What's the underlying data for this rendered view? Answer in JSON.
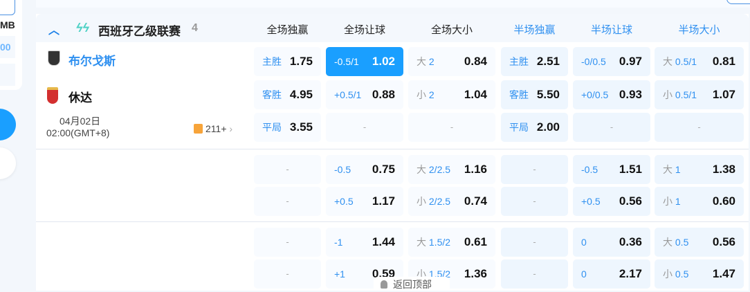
{
  "sidebar": {
    "currency_fragment": "MB",
    "value_fragment": "00"
  },
  "league": {
    "name": "西班牙乙级联赛",
    "count": "4",
    "collapse_icon": "chevron-up-icon",
    "logo_icon": "laliga-hypermotion-logo"
  },
  "columns": [
    "全场独赢",
    "全场让球",
    "全场大小",
    "半场独赢",
    "半场让球",
    "半场大小"
  ],
  "match": {
    "home": "布尔戈斯",
    "away": "休达",
    "date": "04月02日",
    "time": "02:00(GMT+8)",
    "markets_count": "211+"
  },
  "colors": {
    "accent": "#1a9fff",
    "home_team": "#2f90f0",
    "halftime_cell": "#eef6fe"
  },
  "groups": [
    [
      [
        {
          "l": "主胜",
          "o": "1.75"
        },
        {
          "l": "-0.5/1",
          "o": "1.02",
          "selected": true
        },
        {
          "p": "大",
          "l": "2",
          "o": "0.84"
        },
        {
          "l": "主胜",
          "o": "2.51"
        },
        {
          "l": "-0/0.5",
          "o": "0.97"
        },
        {
          "p": "大",
          "l": "0.5/1",
          "o": "0.81"
        }
      ],
      [
        {
          "l": "客胜",
          "o": "4.95"
        },
        {
          "l": "+0.5/1",
          "o": "0.88"
        },
        {
          "p": "小",
          "l": "2",
          "o": "1.04"
        },
        {
          "l": "客胜",
          "o": "5.50"
        },
        {
          "l": "+0/0.5",
          "o": "0.93"
        },
        {
          "p": "小",
          "l": "0.5/1",
          "o": "1.07"
        }
      ],
      [
        {
          "l": "平局",
          "o": "3.55"
        },
        null,
        null,
        {
          "l": "平局",
          "o": "2.00"
        },
        null,
        null
      ]
    ],
    [
      [
        null,
        {
          "l": "-0.5",
          "o": "0.75"
        },
        {
          "p": "大",
          "l": "2/2.5",
          "o": "1.16"
        },
        null,
        {
          "l": "-0.5",
          "o": "1.51"
        },
        {
          "p": "大",
          "l": "1",
          "o": "1.38"
        }
      ],
      [
        null,
        {
          "l": "+0.5",
          "o": "1.17"
        },
        {
          "p": "小",
          "l": "2/2.5",
          "o": "0.74"
        },
        null,
        {
          "l": "+0.5",
          "o": "0.56"
        },
        {
          "p": "小",
          "l": "1",
          "o": "0.60"
        }
      ]
    ],
    [
      [
        null,
        {
          "l": "-1",
          "o": "1.44"
        },
        {
          "p": "大",
          "l": "1.5/2",
          "o": "0.61"
        },
        null,
        {
          "l": "0",
          "o": "0.36"
        },
        {
          "p": "大",
          "l": "0.5",
          "o": "0.56"
        }
      ],
      [
        null,
        {
          "l": "+1",
          "o": "0.59"
        },
        {
          "p": "小",
          "l": "1.5/2",
          "o": "1.36"
        },
        null,
        {
          "l": "0",
          "o": "2.17"
        },
        {
          "p": "小",
          "l": "0.5",
          "o": "1.47"
        }
      ]
    ]
  ],
  "empty_cell": "-",
  "back_to_top": "返回顶部"
}
